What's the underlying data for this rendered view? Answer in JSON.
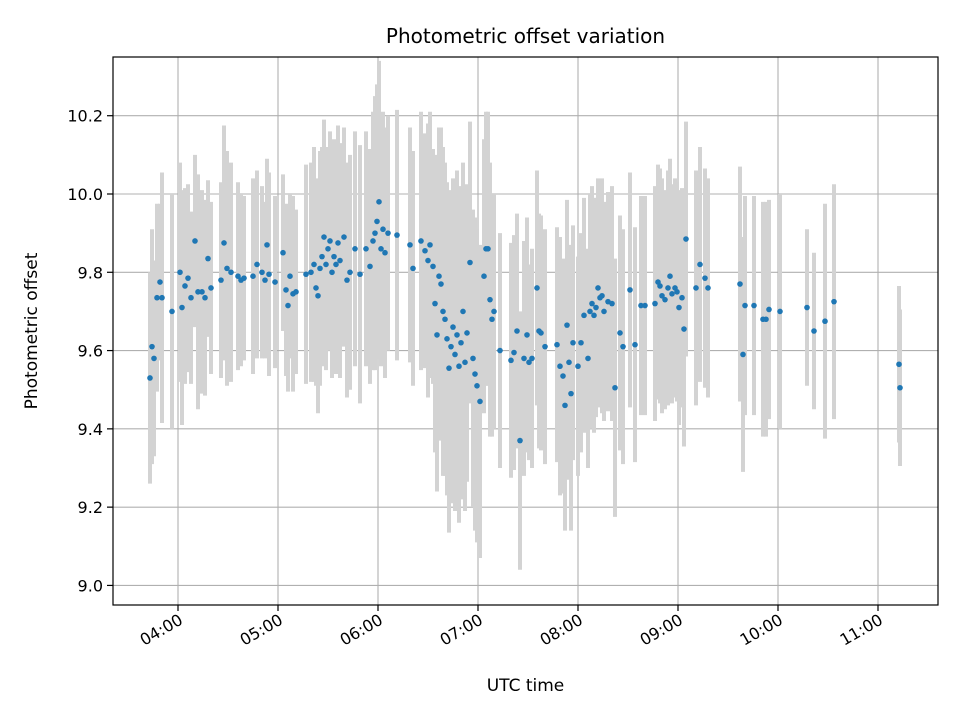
{
  "chart_data": {
    "type": "scatter",
    "title": "Photometric offset variation",
    "xlabel": "UTC time",
    "ylabel": "Photometric offset",
    "x_unit": "hours UTC",
    "xlim": [
      3.35,
      11.6
    ],
    "ylim": [
      8.95,
      10.35
    ],
    "x_ticks": [
      4,
      5,
      6,
      7,
      8,
      9,
      10,
      11
    ],
    "x_tick_labels": [
      "04:00",
      "05:00",
      "06:00",
      "07:00",
      "08:00",
      "09:00",
      "10:00",
      "11:00"
    ],
    "y_ticks": [
      9.0,
      9.2,
      9.4,
      9.6,
      9.8,
      10.0,
      10.2
    ],
    "y_tick_labels": [
      "9.0",
      "9.2",
      "9.4",
      "9.6",
      "9.8",
      "10.0",
      "10.2"
    ],
    "grid": true,
    "colors": {
      "points": "#1f77b4",
      "errorbars": "#d3d3d3",
      "grid": "#b0b0b0"
    },
    "series": [
      {
        "points": [
          [
            3.72,
            9.53,
            0.27
          ],
          [
            3.74,
            9.61,
            0.3
          ],
          [
            3.76,
            9.58,
            0.25
          ],
          [
            3.79,
            9.735,
            0.24
          ],
          [
            3.82,
            9.775,
            0.2
          ],
          [
            3.84,
            9.735,
            0.32
          ],
          [
            3.94,
            9.7,
            0.3
          ],
          [
            4.02,
            9.8,
            0.28
          ],
          [
            4.04,
            9.71,
            0.3
          ],
          [
            4.07,
            9.765,
            0.25
          ],
          [
            4.1,
            9.785,
            0.24
          ],
          [
            4.13,
            9.735,
            0.22
          ],
          [
            4.17,
            9.88,
            0.22
          ],
          [
            4.2,
            9.75,
            0.3
          ],
          [
            4.24,
            9.75,
            0.26
          ],
          [
            4.27,
            9.735,
            0.25
          ],
          [
            4.3,
            9.835,
            0.2
          ],
          [
            4.33,
            9.76,
            0.22
          ],
          [
            4.43,
            9.78,
            0.25
          ],
          [
            4.46,
            9.875,
            0.3
          ],
          [
            4.49,
            9.81,
            0.3
          ],
          [
            4.53,
            9.8,
            0.28
          ],
          [
            4.6,
            9.79,
            0.24
          ],
          [
            4.63,
            9.78,
            0.22
          ],
          [
            4.66,
            9.785,
            0.21
          ],
          [
            4.75,
            9.79,
            0.25
          ],
          [
            4.79,
            9.82,
            0.24
          ],
          [
            4.84,
            9.8,
            0.22
          ],
          [
            4.87,
            9.78,
            0.2
          ],
          [
            4.89,
            9.87,
            0.22
          ],
          [
            4.91,
            9.795,
            0.26
          ],
          [
            4.97,
            9.775,
            0.22
          ],
          [
            5.05,
            9.85,
            0.2
          ],
          [
            5.08,
            9.755,
            0.22
          ],
          [
            5.1,
            9.715,
            0.22
          ],
          [
            5.12,
            9.79,
            0.21
          ],
          [
            5.15,
            9.745,
            0.25
          ],
          [
            5.18,
            9.75,
            0.21
          ],
          [
            5.28,
            9.795,
            0.28
          ],
          [
            5.33,
            9.8,
            0.28
          ],
          [
            5.36,
            9.82,
            0.3
          ],
          [
            5.38,
            9.76,
            0.25
          ],
          [
            5.4,
            9.74,
            0.3
          ],
          [
            5.42,
            9.81,
            0.3
          ],
          [
            5.44,
            9.84,
            0.28
          ],
          [
            5.46,
            9.89,
            0.3
          ],
          [
            5.48,
            9.82,
            0.27
          ],
          [
            5.5,
            9.86,
            0.26
          ],
          [
            5.52,
            9.88,
            0.28
          ],
          [
            5.54,
            9.8,
            0.27
          ],
          [
            5.56,
            9.84,
            0.3
          ],
          [
            5.58,
            9.82,
            0.28
          ],
          [
            5.6,
            9.875,
            0.3
          ],
          [
            5.62,
            9.83,
            0.3
          ],
          [
            5.66,
            9.89,
            0.28
          ],
          [
            5.69,
            9.78,
            0.3
          ],
          [
            5.72,
            9.8,
            0.3
          ],
          [
            5.77,
            9.86,
            0.3
          ],
          [
            5.82,
            9.795,
            0.33
          ],
          [
            5.88,
            9.86,
            0.3
          ],
          [
            5.92,
            9.815,
            0.3
          ],
          [
            5.95,
            9.88,
            0.33
          ],
          [
            5.97,
            9.9,
            0.35
          ],
          [
            5.99,
            9.93,
            0.35
          ],
          [
            6.01,
            9.98,
            0.36
          ],
          [
            6.03,
            9.86,
            0.3
          ],
          [
            6.05,
            9.91,
            0.3
          ],
          [
            6.07,
            9.85,
            0.32
          ],
          [
            6.1,
            9.9,
            0.3
          ],
          [
            6.19,
            9.895,
            0.32
          ],
          [
            6.32,
            9.87,
            0.3
          ],
          [
            6.35,
            9.81,
            0.3
          ],
          [
            6.43,
            9.88,
            0.33
          ],
          [
            6.47,
            9.855,
            0.3
          ],
          [
            6.5,
            9.83,
            0.35
          ],
          [
            6.52,
            9.87,
            0.34
          ],
          [
            6.55,
            9.815,
            0.3
          ],
          [
            6.57,
            9.72,
            0.38
          ],
          [
            6.59,
            9.64,
            0.4
          ],
          [
            6.61,
            9.79,
            0.38
          ],
          [
            6.63,
            9.77,
            0.4
          ],
          [
            6.65,
            9.7,
            0.42
          ],
          [
            6.67,
            9.68,
            0.4
          ],
          [
            6.69,
            9.63,
            0.4
          ],
          [
            6.71,
            9.555,
            0.42
          ],
          [
            6.73,
            9.61,
            0.4
          ],
          [
            6.75,
            9.66,
            0.38
          ],
          [
            6.77,
            9.59,
            0.4
          ],
          [
            6.79,
            9.64,
            0.42
          ],
          [
            6.81,
            9.56,
            0.4
          ],
          [
            6.83,
            9.62,
            0.4
          ],
          [
            6.85,
            9.7,
            0.38
          ],
          [
            6.87,
            9.57,
            0.38
          ],
          [
            6.89,
            9.645,
            0.38
          ],
          [
            6.92,
            9.825,
            0.36
          ],
          [
            6.95,
            9.58,
            0.38
          ],
          [
            6.97,
            9.54,
            0.4
          ],
          [
            6.99,
            9.51,
            0.4
          ],
          [
            7.02,
            9.47,
            0.4
          ],
          [
            7.06,
            9.79,
            0.35
          ],
          [
            7.08,
            9.86,
            0.35
          ],
          [
            7.1,
            9.86,
            0.35
          ],
          [
            7.12,
            9.73,
            0.35
          ],
          [
            7.14,
            9.68,
            0.3
          ],
          [
            7.16,
            9.7,
            0.3
          ],
          [
            7.22,
            9.6,
            0.3
          ],
          [
            7.33,
            9.575,
            0.3
          ],
          [
            7.36,
            9.595,
            0.3
          ],
          [
            7.39,
            9.65,
            0.3
          ],
          [
            7.42,
            9.37,
            0.33
          ],
          [
            7.46,
            9.58,
            0.3
          ],
          [
            7.49,
            9.64,
            0.3
          ],
          [
            7.51,
            9.57,
            0.25
          ],
          [
            7.54,
            9.58,
            0.28
          ],
          [
            7.59,
            9.76,
            0.3
          ],
          [
            7.61,
            9.65,
            0.3
          ],
          [
            7.63,
            9.645,
            0.3
          ],
          [
            7.67,
            9.61,
            0.3
          ],
          [
            7.79,
            9.615,
            0.3
          ],
          [
            7.82,
            9.56,
            0.33
          ],
          [
            7.85,
            9.535,
            0.3
          ],
          [
            7.87,
            9.46,
            0.32
          ],
          [
            7.89,
            9.665,
            0.32
          ],
          [
            7.91,
            9.57,
            0.3
          ],
          [
            7.93,
            9.49,
            0.35
          ],
          [
            7.95,
            9.62,
            0.3
          ],
          [
            8.0,
            9.56,
            0.28
          ],
          [
            8.03,
            9.62,
            0.28
          ],
          [
            8.06,
            9.69,
            0.3
          ],
          [
            8.1,
            9.58,
            0.28
          ],
          [
            8.12,
            9.7,
            0.3
          ],
          [
            8.14,
            9.72,
            0.3
          ],
          [
            8.16,
            9.69,
            0.3
          ],
          [
            8.18,
            9.71,
            0.28
          ],
          [
            8.2,
            9.76,
            0.28
          ],
          [
            8.22,
            9.735,
            0.28
          ],
          [
            8.24,
            9.74,
            0.3
          ],
          [
            8.26,
            9.7,
            0.28
          ],
          [
            8.3,
            9.725,
            0.28
          ],
          [
            8.34,
            9.72,
            0.3
          ],
          [
            8.37,
            9.505,
            0.33
          ],
          [
            8.42,
            9.645,
            0.3
          ],
          [
            8.45,
            9.61,
            0.3
          ],
          [
            8.52,
            9.755,
            0.3
          ],
          [
            8.57,
            9.615,
            0.3
          ],
          [
            8.63,
            9.715,
            0.28
          ],
          [
            8.67,
            9.715,
            0.28
          ],
          [
            8.77,
            9.72,
            0.3
          ],
          [
            8.8,
            9.775,
            0.3
          ],
          [
            8.82,
            9.765,
            0.3
          ],
          [
            8.84,
            9.74,
            0.3
          ],
          [
            8.87,
            9.73,
            0.28
          ],
          [
            8.9,
            9.76,
            0.3
          ],
          [
            8.92,
            9.79,
            0.3
          ],
          [
            8.94,
            9.745,
            0.28
          ],
          [
            8.97,
            9.76,
            0.28
          ],
          [
            8.99,
            9.75,
            0.28
          ],
          [
            9.01,
            9.71,
            0.3
          ],
          [
            9.04,
            9.735,
            0.28
          ],
          [
            9.06,
            9.655,
            0.3
          ],
          [
            9.08,
            9.885,
            0.3
          ],
          [
            9.18,
            9.76,
            0.3
          ],
          [
            9.22,
            9.82,
            0.3
          ],
          [
            9.27,
            9.785,
            0.28
          ],
          [
            9.3,
            9.76,
            0.28
          ],
          [
            9.62,
            9.77,
            0.3
          ],
          [
            9.65,
            9.59,
            0.3
          ],
          [
            9.67,
            9.715,
            0.28
          ],
          [
            9.76,
            9.715,
            0.28
          ],
          [
            9.85,
            9.68,
            0.3
          ],
          [
            9.88,
            9.68,
            0.3
          ],
          [
            9.91,
            9.705,
            0.28
          ],
          [
            10.02,
            9.7,
            0.3
          ],
          [
            10.29,
            9.71,
            0.2
          ],
          [
            10.36,
            9.65,
            0.2
          ],
          [
            10.47,
            9.675,
            0.3
          ],
          [
            10.56,
            9.725,
            0.3
          ],
          [
            11.21,
            9.565,
            0.2
          ],
          [
            11.22,
            9.505,
            0.2
          ]
        ]
      }
    ]
  }
}
